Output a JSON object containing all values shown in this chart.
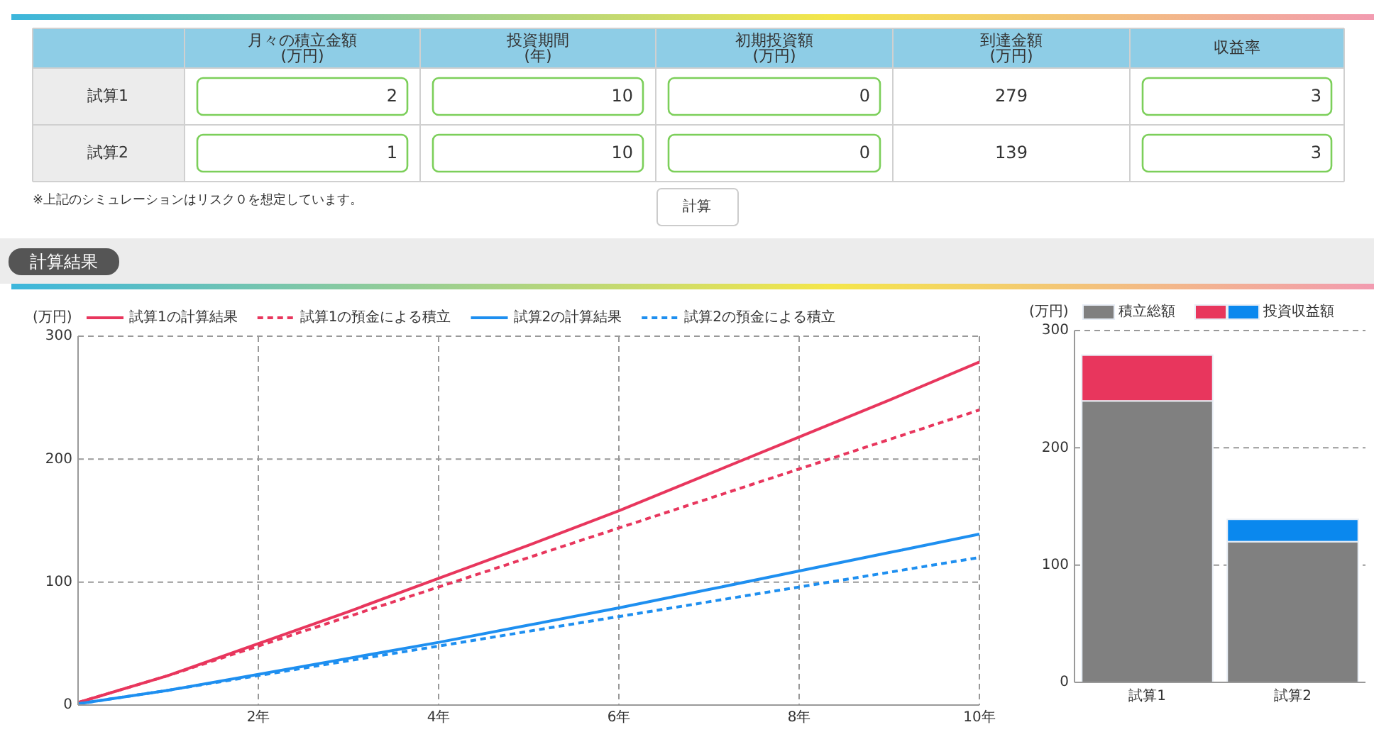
{
  "chart_data": [
    {
      "type": "other",
      "title": "計算結果",
      "categories": [
        "月々の積立金額 (万円)",
        "投資期間 (年)",
        "初期投資額 (万円)",
        "到達金額 (万円)",
        "収益率"
      ],
      "y_categories": [
        "試算1",
        "試算2"
      ],
      "cell_labels": [
        [
          "2",
          "10",
          "0",
          "279",
          "3"
        ],
        [
          "1",
          "10",
          "0",
          "139",
          "3"
        ]
      ],
      "annotations": [
        "※上記のシミュレーションはリスク０を想定しています。",
        "計算"
      ]
    },
    {
      "type": "line",
      "ylabel": "(万円)",
      "x": [
        0,
        1,
        2,
        3,
        4,
        5,
        6,
        7,
        8,
        9,
        10
      ],
      "xlim": [
        0,
        10
      ],
      "ylim": [
        0,
        300
      ],
      "xticks": [
        {
          "value": 2,
          "label": "2年"
        },
        {
          "value": 4,
          "label": "4年"
        },
        {
          "value": 6,
          "label": "6年"
        },
        {
          "value": 8,
          "label": "8年"
        },
        {
          "value": 10,
          "label": "10年"
        }
      ],
      "yticks": [
        0,
        100,
        200,
        300
      ],
      "grid": true,
      "legend": "top",
      "series": [
        {
          "name": "試算1の計算結果",
          "color": "#e8365d",
          "line_style": "solid",
          "values": [
            2,
            24,
            50,
            76,
            103,
            130,
            158,
            188,
            218,
            248,
            279
          ]
        },
        {
          "name": "試算1の預金による積立",
          "color": "#e8365d",
          "line_style": "dashed",
          "values": [
            2,
            24,
            48,
            72,
            96,
            120,
            144,
            168,
            192,
            216,
            240
          ]
        },
        {
          "name": "試算2の計算結果",
          "color": "#1e8ff0",
          "line_style": "solid",
          "values": [
            1,
            12,
            25,
            38,
            51,
            65,
            79,
            94,
            109,
            124,
            139
          ]
        },
        {
          "name": "試算2の預金による積立",
          "color": "#1e8ff0",
          "line_style": "dashed",
          "values": [
            1,
            12,
            24,
            36,
            48,
            60,
            72,
            84,
            96,
            108,
            120
          ]
        }
      ]
    },
    {
      "type": "bar",
      "stacked": true,
      "ylabel": "(万円)",
      "categories": [
        "試算1",
        "試算2"
      ],
      "ylim": [
        0,
        300
      ],
      "yticks": [
        0,
        100,
        200,
        300
      ],
      "grid": "y",
      "legend": "top",
      "series": [
        {
          "name": "積立総額",
          "color": "#808080",
          "values": [
            240,
            120
          ]
        },
        {
          "name": "投資収益額",
          "colors": [
            "#e8365d",
            "#0a88ee"
          ],
          "values": [
            39,
            19
          ]
        }
      ]
    }
  ]
}
